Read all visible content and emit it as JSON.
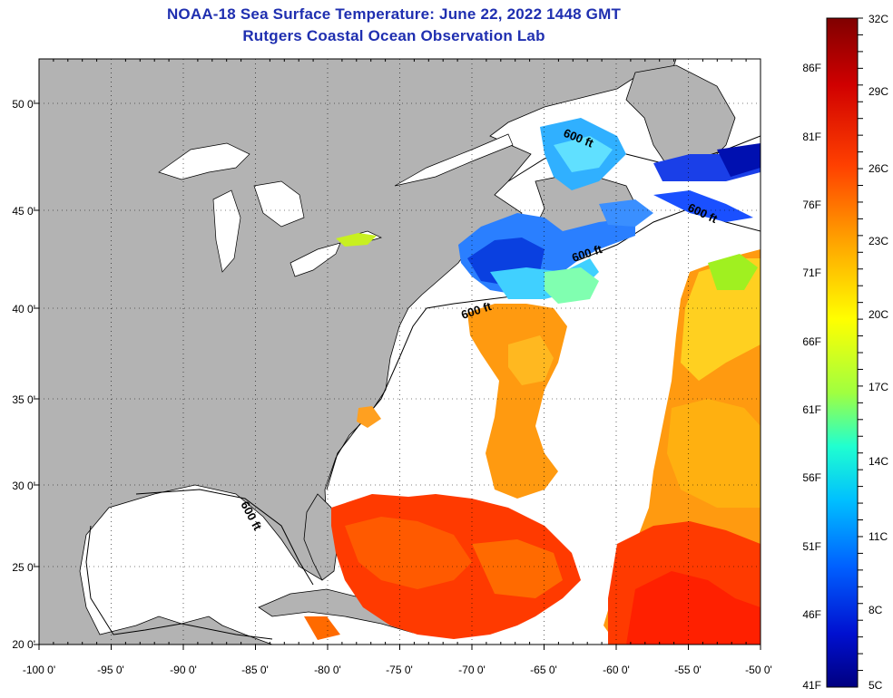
{
  "title": "NOAA-18 Sea Surface Temperature:  June 22, 2022 1448 GMT",
  "subtitle": "Rutgers Coastal Ocean Observation Lab",
  "map": {
    "lon_labels": [
      "-100 0'",
      "-95 0'",
      "-90 0'",
      "-85 0'",
      "-80 0'",
      "-75 0'",
      "-70 0'",
      "-65 0'",
      "-60 0'",
      "-55 0'",
      "-50 0'"
    ],
    "lat_labels": [
      "20 0'",
      "25 0'",
      "30 0'",
      "35 0'",
      "40 0'",
      "45 0'",
      "50 0'"
    ],
    "lon_range": [
      -100,
      -50
    ],
    "lat_range": [
      20,
      52.5
    ],
    "contour_labels": [
      "600 ft",
      "600 ft",
      "600 ft",
      "600 ft",
      "600 ft"
    ],
    "land_color": "#b3b3b3",
    "water_color": "#ffffff"
  },
  "colorbar": {
    "fahrenheit_labels": [
      "86F",
      "81F",
      "76F",
      "71F",
      "66F",
      "61F",
      "56F",
      "51F",
      "46F",
      "41F"
    ],
    "celsius_labels": [
      "32C",
      "29C",
      "26C",
      "23C",
      "20C",
      "17C",
      "14C",
      "11C",
      "8C",
      "5C"
    ],
    "colors": [
      "#800000",
      "#e01000",
      "#ff6a00",
      "#ffd000",
      "#d8ff10",
      "#40ffb0",
      "#00d8ff",
      "#0070ff",
      "#0010d0",
      "#000080"
    ]
  }
}
